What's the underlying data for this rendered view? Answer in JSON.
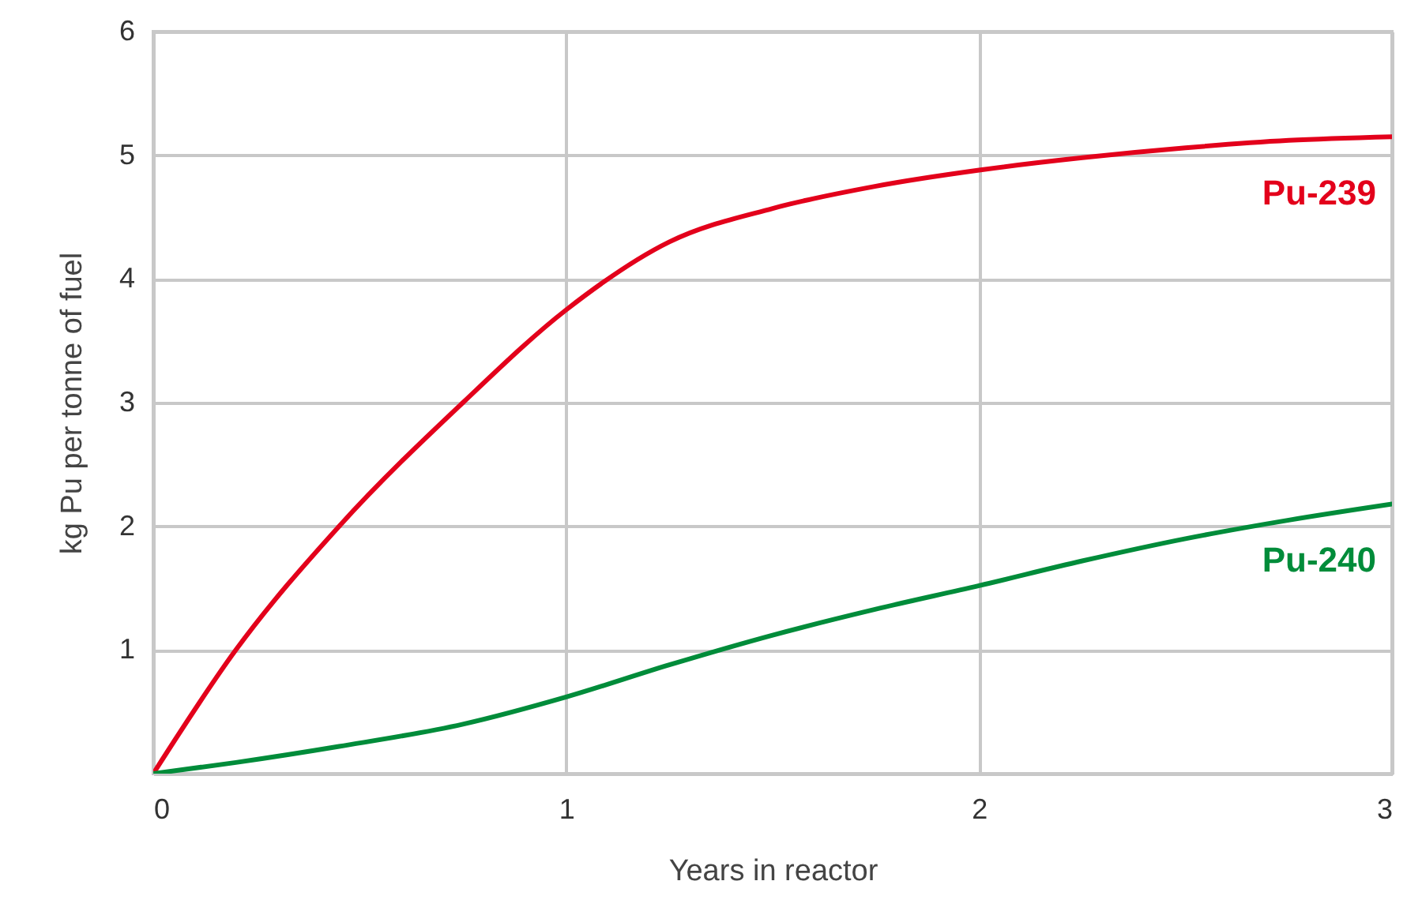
{
  "chart_data": {
    "type": "line",
    "xlabel": "Years in reactor",
    "ylabel": "kg Pu per tonne of fuel",
    "x": [
      0,
      0.2,
      0.45,
      0.75,
      1.0,
      1.25,
      1.5,
      1.75,
      2.0,
      2.25,
      2.5,
      2.75,
      3.0
    ],
    "series": [
      {
        "name": "Pu-239",
        "color": "#e3001b",
        "values": [
          0,
          1.0,
          2.0,
          3.0,
          3.75,
          4.3,
          4.57,
          4.75,
          4.88,
          4.98,
          5.06,
          5.12,
          5.15
        ]
      },
      {
        "name": "Pu-240",
        "color": "#008c3a",
        "values": [
          0,
          0.09,
          0.22,
          0.4,
          0.62,
          0.88,
          1.12,
          1.33,
          1.52,
          1.72,
          1.9,
          2.05,
          2.18
        ]
      }
    ],
    "xlim": [
      0,
      3
    ],
    "xticks": [
      0,
      1,
      2,
      3
    ],
    "ylim": [
      0,
      6
    ],
    "yticks": [
      {
        "value": 0,
        "label": null
      },
      1,
      2,
      3,
      4,
      5,
      6
    ],
    "grid": true,
    "marker": "none",
    "line_style": "solid"
  }
}
